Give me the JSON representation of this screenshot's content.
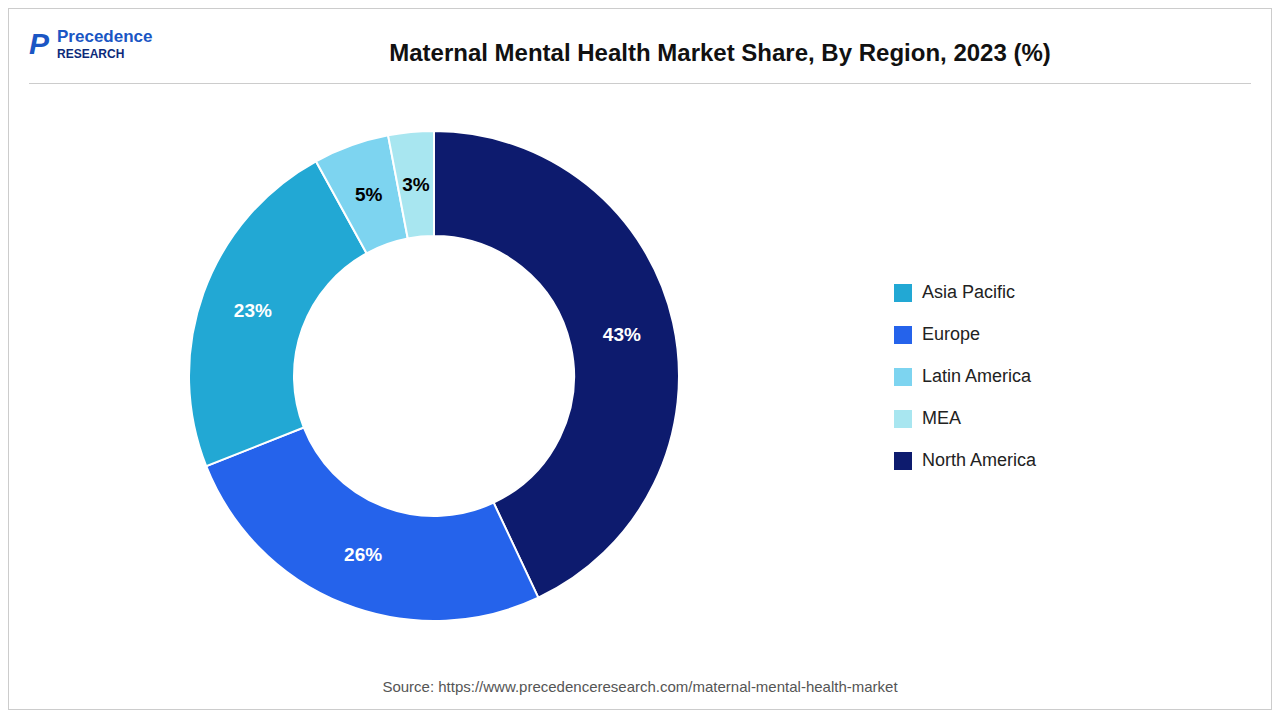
{
  "chart_data": {
    "type": "pie",
    "title": "Maternal Mental Health Market Share, By Region, 2023 (%)",
    "categories": [
      "North America",
      "Europe",
      "Asia Pacific",
      "Latin America",
      "MEA"
    ],
    "values": [
      43,
      26,
      23,
      5,
      3
    ],
    "value_labels": [
      "43%",
      "26%",
      "23%",
      "5%",
      "3%"
    ],
    "colors": [
      "#0d1b6e",
      "#2563eb",
      "#22a8d4",
      "#7dd4f0",
      "#a8e6f0"
    ],
    "data_labels": true,
    "legend": "right",
    "annotations": [
      "Source: https://www.precedenceresearch.com/maternal-mental-health-market",
      "Precedence",
      "RESEARCH",
      "P"
    ]
  }
}
